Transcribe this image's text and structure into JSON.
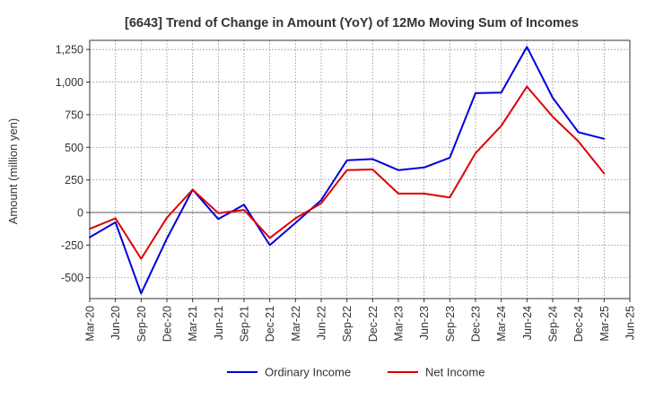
{
  "chart_data": {
    "type": "line",
    "title": "[6643]  Trend of Change in Amount (YoY) of 12Mo Moving Sum of Incomes",
    "ylabel": "Amount (million yen)",
    "xlabel": "",
    "ylim": [
      -660,
      1320
    ],
    "yticks": [
      -500,
      -250,
      0,
      250,
      500,
      750,
      1000,
      1250
    ],
    "ytick_labels": [
      "-500",
      "-250",
      "0",
      "250",
      "500",
      "750",
      "1,000",
      "1,250"
    ],
    "x_tick_labels": [
      "Mar-20",
      "Jun-20",
      "Sep-20",
      "Dec-20",
      "Mar-21",
      "Jun-21",
      "Sep-21",
      "Dec-21",
      "Mar-22",
      "Jun-22",
      "Sep-22",
      "Dec-22",
      "Mar-23",
      "Jun-23",
      "Sep-23",
      "Dec-23",
      "Mar-24",
      "Jun-24",
      "Sep-24",
      "Dec-24",
      "Mar-25",
      "Jun-25"
    ],
    "grid": true,
    "legend_position": "bottom-center",
    "series": [
      {
        "name": "Ordinary Income",
        "color": "#0000dd",
        "values": [
          -190,
          -75,
          -620,
          -200,
          175,
          -50,
          60,
          -250,
          -80,
          95,
          400,
          410,
          325,
          345,
          420,
          915,
          920,
          1270,
          880,
          615,
          565
        ]
      },
      {
        "name": "Net Income",
        "color": "#dd0000",
        "values": [
          -125,
          -45,
          -355,
          -40,
          175,
          -5,
          20,
          -195,
          -45,
          70,
          325,
          330,
          145,
          145,
          115,
          455,
          665,
          965,
          735,
          545,
          300
        ]
      }
    ]
  }
}
